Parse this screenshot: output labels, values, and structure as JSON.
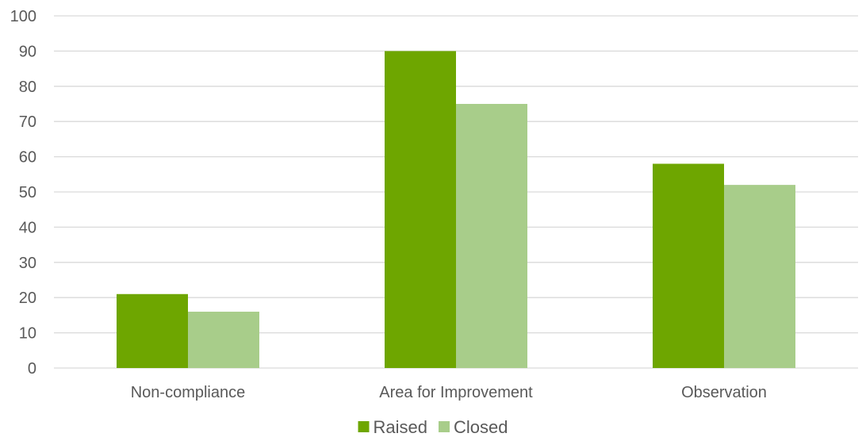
{
  "chart_data": {
    "type": "bar",
    "categories": [
      "Non-compliance",
      "Area for Improvement",
      "Observation"
    ],
    "series": [
      {
        "name": "Raised",
        "values": [
          21,
          90,
          58
        ],
        "color": "#6ea600"
      },
      {
        "name": "Closed",
        "values": [
          16,
          75,
          52
        ],
        "color": "#a8cd8a"
      }
    ],
    "ylim": [
      0,
      100
    ],
    "yticks": [
      0,
      10,
      20,
      30,
      40,
      50,
      60,
      70,
      80,
      90,
      100
    ],
    "grid": true,
    "gridline_color": "#d9d9d9",
    "legend": {
      "placement": "bottom-center"
    },
    "title": "",
    "xlabel": "",
    "ylabel": ""
  }
}
